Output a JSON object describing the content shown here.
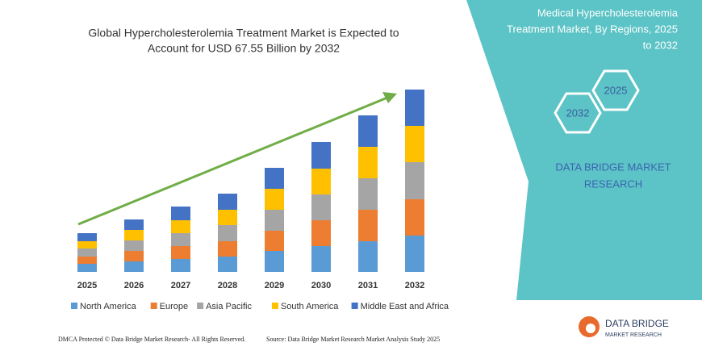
{
  "chart_data": {
    "type": "bar",
    "stacked": true,
    "title": [
      "Global Hypercholesterolemia Treatment Market is Expected to",
      "Account for USD 67.55 Billion by 2032"
    ],
    "categories": [
      "2025",
      "2026",
      "2027",
      "2028",
      "2029",
      "2030",
      "2031",
      "2032"
    ],
    "series": [
      {
        "name": "North America",
        "color": "#5b9bd5",
        "values": [
          10,
          13,
          16,
          19,
          26,
          32,
          38,
          45
        ]
      },
      {
        "name": "Europe",
        "color": "#ed7d31",
        "values": [
          9,
          13,
          16,
          19,
          25,
          32,
          39,
          45
        ]
      },
      {
        "name": "Asia Pacific",
        "color": "#a5a5a5",
        "values": [
          10,
          13,
          16,
          20,
          26,
          32,
          39,
          46
        ]
      },
      {
        "name": "South America",
        "color": "#ffc000",
        "values": [
          9,
          13,
          16,
          19,
          26,
          32,
          39,
          45
        ]
      },
      {
        "name": "Middle East and Africa",
        "color": "#4472c4",
        "values": [
          10,
          13,
          17,
          20,
          26,
          33,
          39,
          45
        ]
      }
    ]
  },
  "panel": {
    "title": [
      "Medical Hypercholesterolemia",
      "Treatment Market, By Regions, 2025",
      "to 2032"
    ],
    "hex_left": "2032",
    "hex_right": "2025",
    "brand": [
      "DATA BRIDGE MARKET",
      "RESEARCH"
    ]
  },
  "footer": {
    "left": "DMCA Protected © Data Bridge Market Research-  All Rights Reserved.",
    "right": "Source: Data Bridge Market Research  Market Analysis Study 2025"
  },
  "logo": {
    "name": "DATA BRIDGE",
    "tagline": "MARKET RESEARCH"
  }
}
